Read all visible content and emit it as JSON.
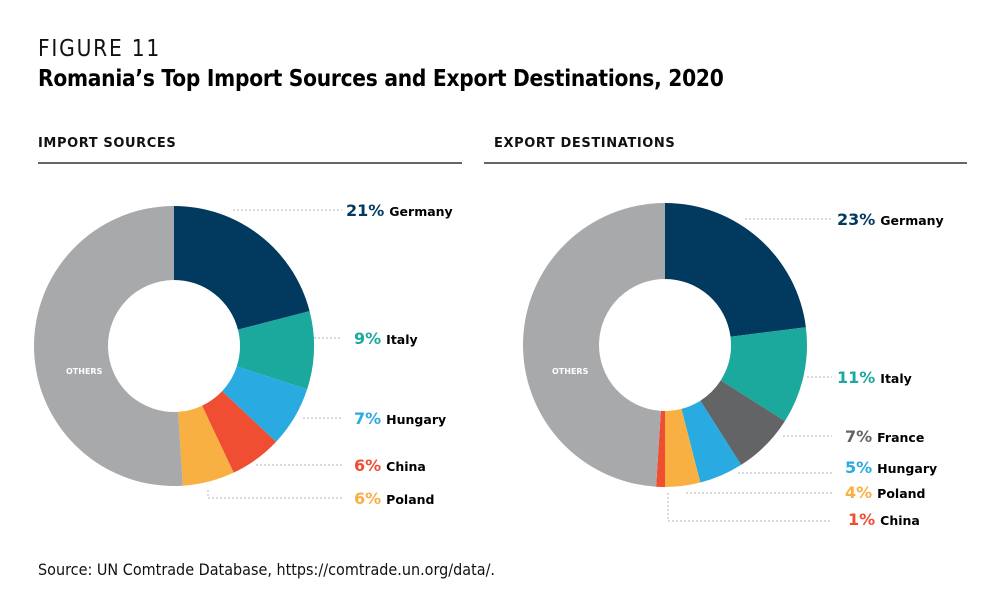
{
  "figure_label": "FIGURE 11",
  "title": "Romania’s Top Import Sources and Export Destinations, 2020",
  "source": "Source: UN Comtrade Database, https://comtrade.un.org/data/.",
  "colors": {
    "germany": "#023a5f",
    "italy": "#1ba89d",
    "hungary": "#29aae1",
    "china": "#ef4e33",
    "poland": "#f9b043",
    "france": "#636466",
    "others": "#a7a9ab",
    "leader": "#b5b5b5"
  },
  "chart_data": [
    {
      "type": "pie",
      "donut": true,
      "title": "IMPORT SOURCES",
      "start": "12 o'clock, clockwise",
      "slices": [
        {
          "label": "Germany",
          "value": 21,
          "pct_label": "21%",
          "color_key": "germany"
        },
        {
          "label": "Italy",
          "value": 9,
          "pct_label": "9%",
          "color_key": "italy"
        },
        {
          "label": "Hungary",
          "value": 7,
          "pct_label": "7%",
          "color_key": "hungary"
        },
        {
          "label": "China",
          "value": 6,
          "pct_label": "6%",
          "color_key": "china"
        },
        {
          "label": "Poland",
          "value": 6,
          "pct_label": "6%",
          "color_key": "poland"
        },
        {
          "label": "OTHERS",
          "value": 51,
          "pct_label": "",
          "color_key": "others"
        }
      ]
    },
    {
      "type": "pie",
      "donut": true,
      "title": "EXPORT DESTINATIONS",
      "start": "12 o'clock, clockwise",
      "slices": [
        {
          "label": "Germany",
          "value": 23,
          "pct_label": "23%",
          "color_key": "germany"
        },
        {
          "label": "Italy",
          "value": 11,
          "pct_label": "11%",
          "color_key": "italy"
        },
        {
          "label": "France",
          "value": 7,
          "pct_label": "7%",
          "color_key": "france"
        },
        {
          "label": "Hungary",
          "value": 5,
          "pct_label": "5%",
          "color_key": "hungary"
        },
        {
          "label": "Poland",
          "value": 4,
          "pct_label": "4%",
          "color_key": "poland"
        },
        {
          "label": "China",
          "value": 1,
          "pct_label": "1%",
          "color_key": "china"
        },
        {
          "label": "OTHERS",
          "value": 49,
          "pct_label": "",
          "color_key": "others"
        }
      ]
    }
  ]
}
